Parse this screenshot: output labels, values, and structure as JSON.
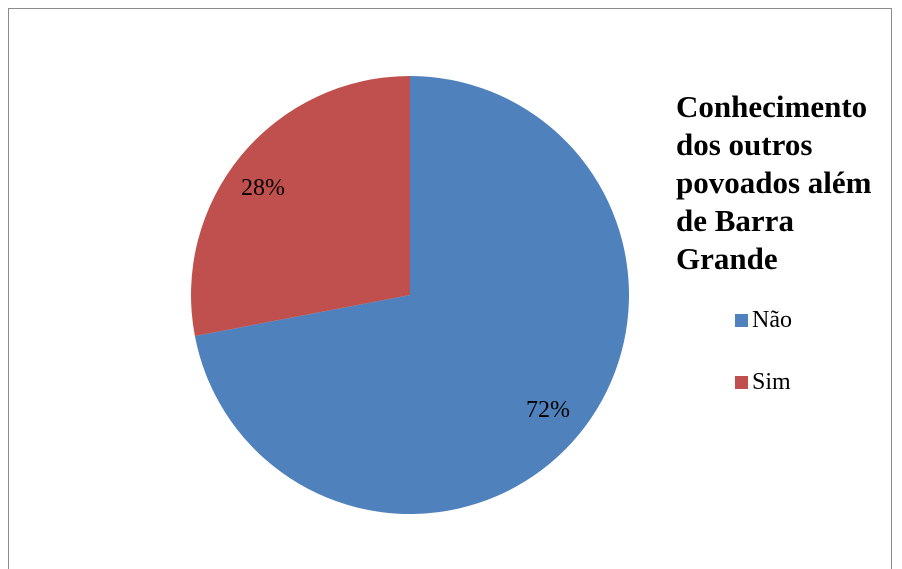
{
  "chart_data": {
    "type": "pie",
    "title": "Conhecimento dos outros povoados além de Barra Grande",
    "categories": [
      "Não",
      "Sim"
    ],
    "values": [
      72,
      28
    ],
    "labels": [
      "72%",
      "28%"
    ],
    "colors": [
      "#4F81BD",
      "#C0504D"
    ],
    "legend_position": "right"
  }
}
